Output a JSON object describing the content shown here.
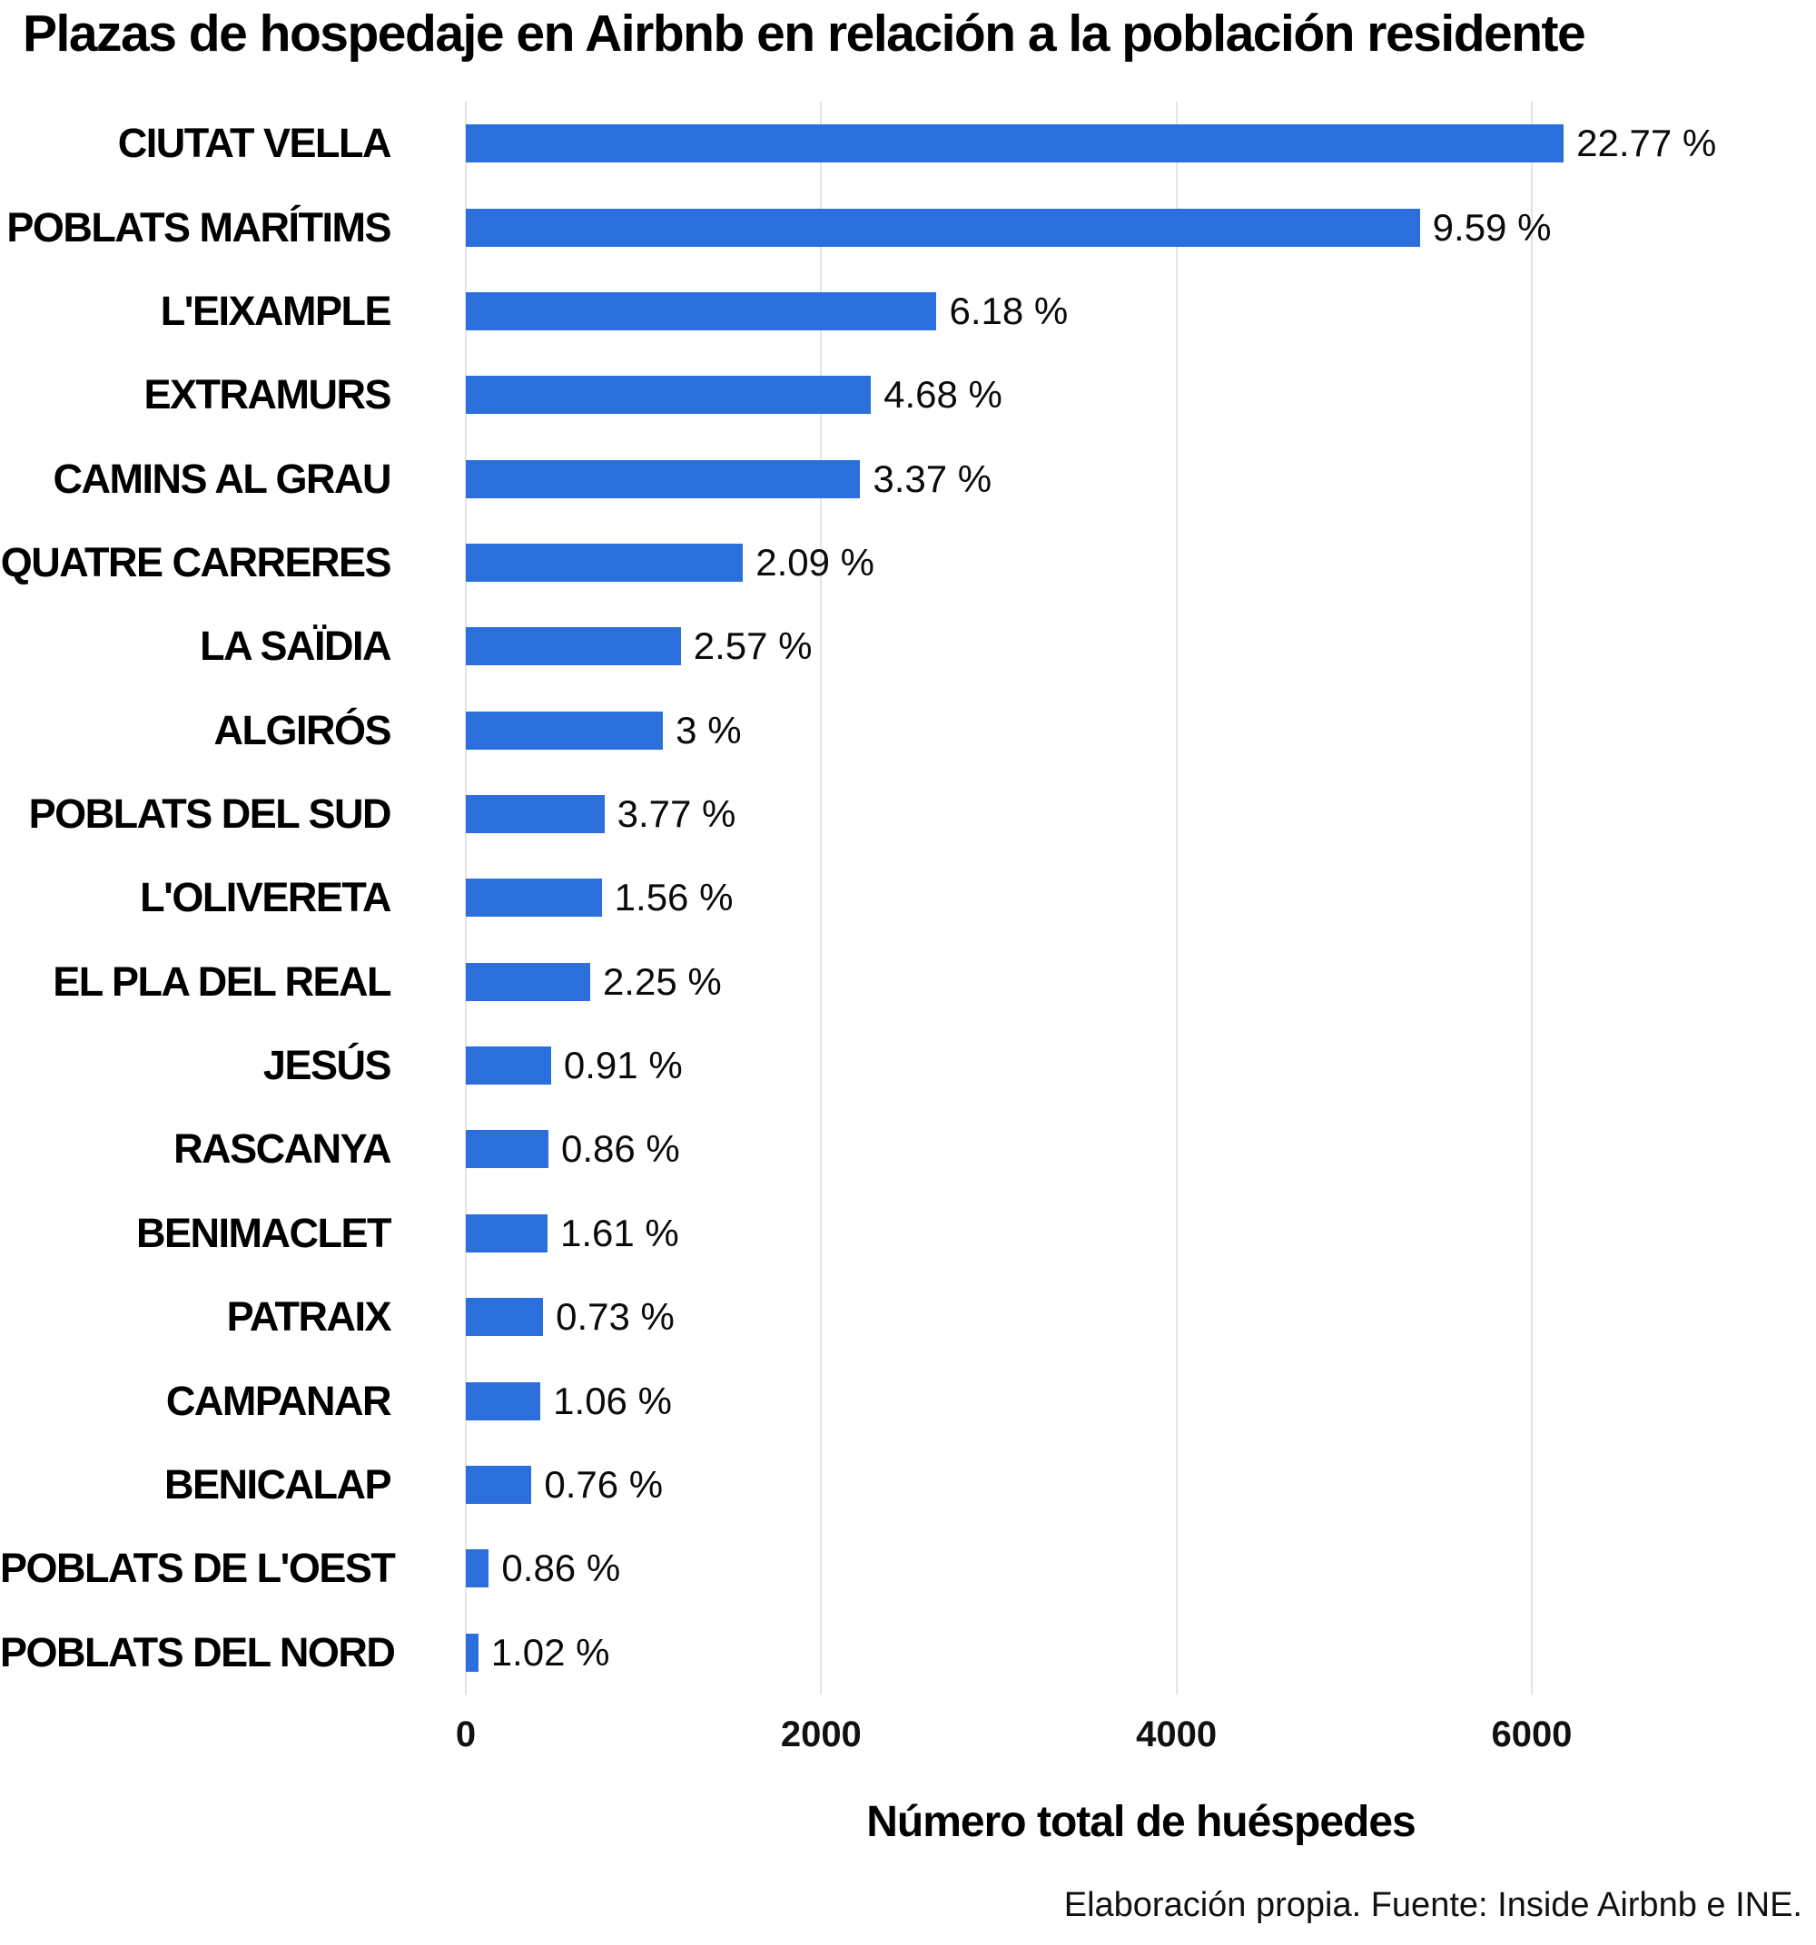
{
  "chart_data": {
    "type": "bar",
    "orientation": "horizontal",
    "title": "Plazas de hospedaje en Airbnb en relación a la población residente",
    "xlabel": "Número total de huéspedes",
    "ylabel": "",
    "source": "Elaboración propia. Fuente: Inside Airbnb e INE.",
    "bar_color": "#2a6fdc",
    "gridline_color": "#e4e4e4",
    "grid": true,
    "legend": false,
    "xlim": [
      0,
      7600
    ],
    "x_ticks": [
      0,
      2000,
      4000,
      6000
    ],
    "x_tick_labels": [
      "0",
      "2000",
      "4000",
      "6000"
    ],
    "categories": [
      "CIUTAT VELLA",
      "POBLATS MARÍTIMS",
      "L'EIXAMPLE",
      "EXTRAMURS",
      "CAMINS AL GRAU",
      "QUATRE CARRERES",
      "LA SAÏDIA",
      "ALGIRÓS",
      "POBLATS DEL SUD",
      "L'OLIVERETA",
      "EL PLA DEL REAL",
      "JESÚS",
      "RASCANYA",
      "BENIMACLET",
      "PATRAIX",
      "CAMPANAR",
      "BENICALAP",
      "POBLATS DE L'OEST",
      "POBLATS DEL NORD"
    ],
    "values": [
      6180,
      5370,
      2650,
      2280,
      2220,
      1560,
      1210,
      1110,
      780,
      765,
      700,
      480,
      465,
      460,
      435,
      420,
      370,
      130,
      70
    ],
    "bar_labels": [
      "22.77 %",
      "9.59 %",
      "6.18 %",
      "4.68 %",
      "3.37 %",
      "2.09 %",
      "2.57 %",
      "3 %",
      "3.77 %",
      "1.56 %",
      "2.25 %",
      "0.91 %",
      "0.86 %",
      "1.61 %",
      "0.73 %",
      "1.06 %",
      "0.76 %",
      "0.86 %",
      "1.02 %"
    ]
  }
}
